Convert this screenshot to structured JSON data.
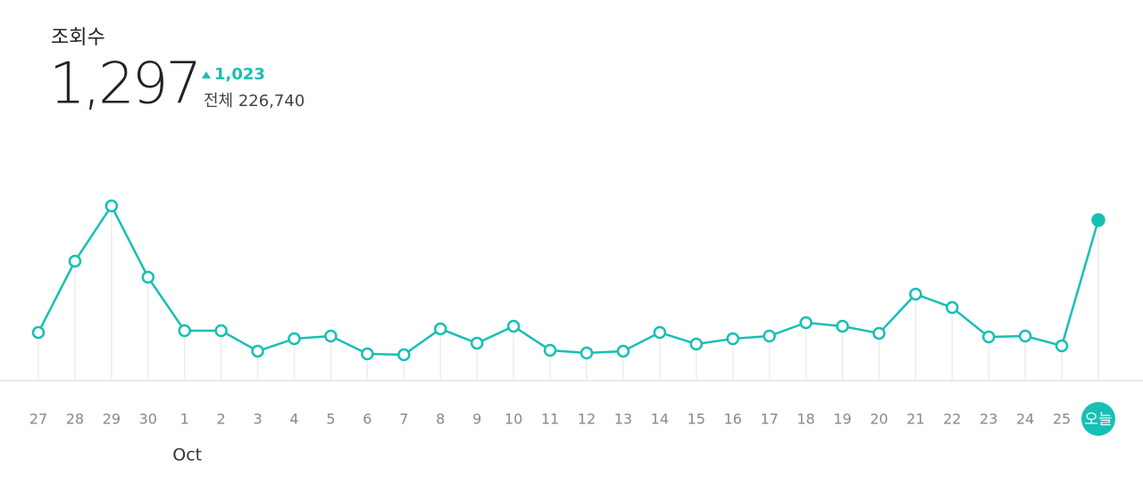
{
  "header": {
    "title": "조회수",
    "headline": "1,297",
    "change": "1,023",
    "total": "전체 226,740"
  },
  "chart_data": {
    "type": "line",
    "categories": [
      "27",
      "28",
      "29",
      "30",
      "1",
      "2",
      "3",
      "4",
      "5",
      "6",
      "7",
      "8",
      "9",
      "10",
      "11",
      "12",
      "13",
      "14",
      "15",
      "16",
      "17",
      "18",
      "19",
      "20",
      "21",
      "22",
      "23",
      "24",
      "25",
      "오늘"
    ],
    "values": [
      389,
      965,
      1411,
      835,
      403,
      403,
      238,
      338,
      360,
      216,
      209,
      418,
      302,
      439,
      245,
      223,
      238,
      389,
      295,
      338,
      360,
      468,
      439,
      382,
      698,
      590,
      353,
      360,
      281,
      1297
    ],
    "annotations": [
      {
        "text": "Oct",
        "category_index": 4
      }
    ],
    "color": "#17bfb4",
    "ylim": [
      0,
      1800
    ]
  }
}
